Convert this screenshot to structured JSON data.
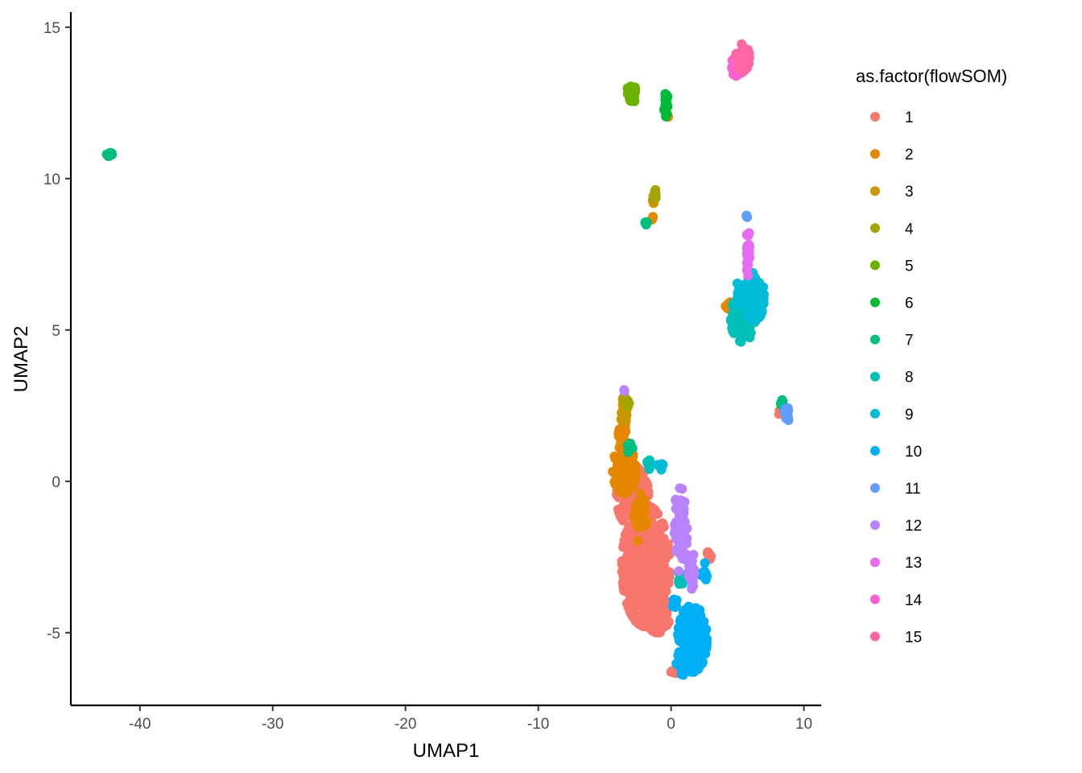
{
  "chart_data": {
    "type": "scatter",
    "xlabel": "UMAP1",
    "ylabel": "UMAP2",
    "xlim": [
      -45.2,
      11.3
    ],
    "ylim": [
      -7.4,
      15.5
    ],
    "xticks": [
      -40,
      -30,
      -20,
      -10,
      0,
      10
    ],
    "xtick_labels": [
      "-40",
      "-30",
      "-20",
      "-10",
      "0",
      "10"
    ],
    "yticks": [
      -5,
      0,
      5,
      10,
      15
    ],
    "ytick_labels": [
      "-5",
      "0",
      "5",
      "10",
      "15"
    ],
    "grid": false,
    "legend": {
      "title": "as.factor(flowSOM)",
      "placement": "right"
    },
    "series": [
      {
        "name": "1",
        "color": "#F8766D",
        "clusters": [
          {
            "cx": -1.9,
            "cy": -2.8,
            "rx": 1.8,
            "ry": 2.0,
            "n": 700
          },
          {
            "cx": -2.9,
            "cy": -0.5,
            "rx": 1.2,
            "ry": 1.0,
            "n": 220
          },
          {
            "cx": -1.0,
            "cy": -4.4,
            "rx": 0.9,
            "ry": 0.6,
            "n": 140
          },
          {
            "cx": 2.9,
            "cy": -2.5,
            "rx": 0.25,
            "ry": 0.2,
            "n": 8
          },
          {
            "cx": 8.3,
            "cy": 2.3,
            "rx": 0.2,
            "ry": 0.15,
            "n": 6
          },
          {
            "cx": 0.2,
            "cy": -6.3,
            "rx": 0.2,
            "ry": 0.1,
            "n": 4
          }
        ]
      },
      {
        "name": "2",
        "color": "#E58700",
        "clusters": [
          {
            "cx": -3.5,
            "cy": 0.4,
            "rx": 0.9,
            "ry": 0.8,
            "n": 180
          },
          {
            "cx": -3.6,
            "cy": 1.6,
            "rx": 0.35,
            "ry": 0.5,
            "n": 40
          },
          {
            "cx": -2.4,
            "cy": -1.2,
            "rx": 0.6,
            "ry": 0.8,
            "n": 40
          },
          {
            "cx": 4.5,
            "cy": 5.8,
            "rx": 0.4,
            "ry": 0.2,
            "n": 25
          },
          {
            "cx": -1.4,
            "cy": 8.7,
            "rx": 0.1,
            "ry": 0.1,
            "n": 3
          },
          {
            "cx": -0.3,
            "cy": 12.0,
            "rx": 0.1,
            "ry": 0.1,
            "n": 2
          }
        ]
      },
      {
        "name": "3",
        "color": "#C99800",
        "clusters": [
          {
            "cx": -3.5,
            "cy": 2.4,
            "rx": 0.25,
            "ry": 0.4,
            "n": 35
          },
          {
            "cx": -1.3,
            "cy": 9.3,
            "rx": 0.15,
            "ry": 0.2,
            "n": 6
          }
        ]
      },
      {
        "name": "4",
        "color": "#A3A500",
        "clusters": [
          {
            "cx": -1.2,
            "cy": 9.5,
            "rx": 0.15,
            "ry": 0.2,
            "n": 10
          },
          {
            "cx": -3.3,
            "cy": 2.6,
            "rx": 0.2,
            "ry": 0.2,
            "n": 8
          }
        ]
      },
      {
        "name": "5",
        "color": "#6BB100",
        "clusters": [
          {
            "cx": -3.0,
            "cy": 12.8,
            "rx": 0.35,
            "ry": 0.35,
            "n": 40
          }
        ]
      },
      {
        "name": "6",
        "color": "#00BA38",
        "clusters": [
          {
            "cx": -0.4,
            "cy": 12.5,
            "rx": 0.15,
            "ry": 0.45,
            "n": 25
          }
        ]
      },
      {
        "name": "7",
        "color": "#00BF7D",
        "clusters": [
          {
            "cx": -42.3,
            "cy": 10.8,
            "rx": 0.2,
            "ry": 0.08,
            "n": 12
          },
          {
            "cx": -1.9,
            "cy": 8.55,
            "rx": 0.12,
            "ry": 0.15,
            "n": 8
          },
          {
            "cx": 8.3,
            "cy": 2.55,
            "rx": 0.2,
            "ry": 0.15,
            "n": 8
          },
          {
            "cx": -3.1,
            "cy": 1.2,
            "rx": 0.2,
            "ry": 0.3,
            "n": 6
          }
        ]
      },
      {
        "name": "8",
        "color": "#00C0B8",
        "clusters": [
          {
            "cx": 5.4,
            "cy": 5.4,
            "rx": 0.9,
            "ry": 0.8,
            "n": 160
          },
          {
            "cx": -1.6,
            "cy": 0.6,
            "rx": 0.2,
            "ry": 0.2,
            "n": 10
          },
          {
            "cx": 0.7,
            "cy": -3.2,
            "rx": 0.3,
            "ry": 0.4,
            "n": 10
          }
        ]
      },
      {
        "name": "9",
        "color": "#00BCD8",
        "clusters": [
          {
            "cx": 6.3,
            "cy": 6.1,
            "rx": 0.7,
            "ry": 0.8,
            "n": 180
          },
          {
            "cx": 5.2,
            "cy": 6.2,
            "rx": 0.4,
            "ry": 0.4,
            "n": 25
          },
          {
            "cx": -0.8,
            "cy": 0.5,
            "rx": 0.3,
            "ry": 0.2,
            "n": 6
          }
        ]
      },
      {
        "name": "10",
        "color": "#00B0F6",
        "clusters": [
          {
            "cx": 1.6,
            "cy": -5.2,
            "rx": 1.1,
            "ry": 1.1,
            "n": 320
          },
          {
            "cx": 1.0,
            "cy": -6.0,
            "rx": 0.6,
            "ry": 0.4,
            "n": 40
          },
          {
            "cx": 2.5,
            "cy": -3.0,
            "rx": 0.4,
            "ry": 0.3,
            "n": 10
          },
          {
            "cx": 0.2,
            "cy": -4.0,
            "rx": 0.3,
            "ry": 0.3,
            "n": 8
          }
        ]
      },
      {
        "name": "11",
        "color": "#619CFF",
        "clusters": [
          {
            "cx": 8.7,
            "cy": 2.2,
            "rx": 0.2,
            "ry": 0.25,
            "n": 15
          },
          {
            "cx": 5.7,
            "cy": 8.7,
            "rx": 0.1,
            "ry": 0.1,
            "n": 3
          }
        ]
      },
      {
        "name": "12",
        "color": "#B983FF",
        "clusters": [
          {
            "cx": 0.7,
            "cy": -1.6,
            "rx": 0.5,
            "ry": 1.4,
            "n": 90
          },
          {
            "cx": 1.6,
            "cy": -3.0,
            "rx": 0.3,
            "ry": 0.6,
            "n": 25
          },
          {
            "cx": -3.5,
            "cy": 3.0,
            "rx": 0.1,
            "ry": 0.1,
            "n": 2
          }
        ]
      },
      {
        "name": "13",
        "color": "#E76BF3",
        "clusters": [
          {
            "cx": 5.8,
            "cy": 7.6,
            "rx": 0.15,
            "ry": 0.8,
            "n": 30
          }
        ]
      },
      {
        "name": "14",
        "color": "#FD61D1",
        "clusters": [
          {
            "cx": 5.1,
            "cy": 13.7,
            "rx": 0.6,
            "ry": 0.35,
            "n": 80
          }
        ]
      },
      {
        "name": "15",
        "color": "#FF67A4",
        "clusters": [
          {
            "cx": 5.4,
            "cy": 14.0,
            "rx": 0.5,
            "ry": 0.45,
            "n": 90
          }
        ]
      }
    ]
  }
}
